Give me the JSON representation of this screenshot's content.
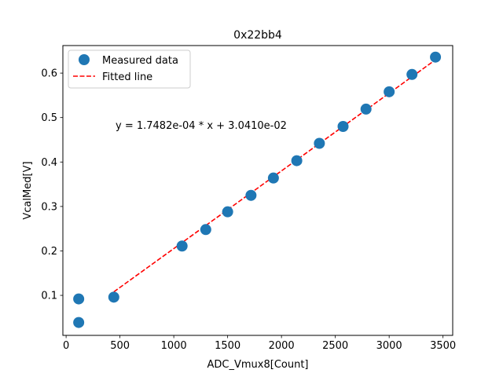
{
  "chart_data": {
    "type": "scatter",
    "title": "0x22bb4",
    "xlabel": "ADC_Vmux8[Count]",
    "ylabel": "VcalMed[V]",
    "xlim": [
      -30,
      3590
    ],
    "ylim": [
      0.01,
      0.662
    ],
    "xticks": [
      0,
      500,
      1000,
      1500,
      2000,
      2500,
      3000,
      3500
    ],
    "yticks": [
      0.1,
      0.2,
      0.3,
      0.4,
      0.5,
      0.6
    ],
    "xtick_labels": [
      "0",
      "500",
      "1000",
      "1500",
      "2000",
      "2500",
      "3000",
      "3500"
    ],
    "ytick_labels": [
      "0.1",
      "0.2",
      "0.3",
      "0.4",
      "0.5",
      "0.6"
    ],
    "series": [
      {
        "name": "Measured data",
        "kind": "scatter",
        "color": "#1f77b4",
        "x": [
          117,
          117,
          443,
          1077,
          1297,
          1500,
          1717,
          1925,
          2142,
          2352,
          2572,
          2785,
          3000,
          3212,
          3430
        ],
        "y": [
          0.039,
          0.092,
          0.096,
          0.211,
          0.248,
          0.288,
          0.325,
          0.364,
          0.403,
          0.442,
          0.48,
          0.519,
          0.558,
          0.597,
          0.636
        ]
      },
      {
        "name": "Fitted line",
        "kind": "line",
        "style": "dashed",
        "color": "#ff0000",
        "x": [
          443,
          3430
        ],
        "y": [
          0.1079,
          0.63
        ]
      }
    ],
    "legend": {
      "position": "upper-left",
      "entries": [
        "Measured data",
        "Fitted line"
      ]
    },
    "annotation": "y = 1.7482e-04 * x + 3.0410e-02"
  }
}
